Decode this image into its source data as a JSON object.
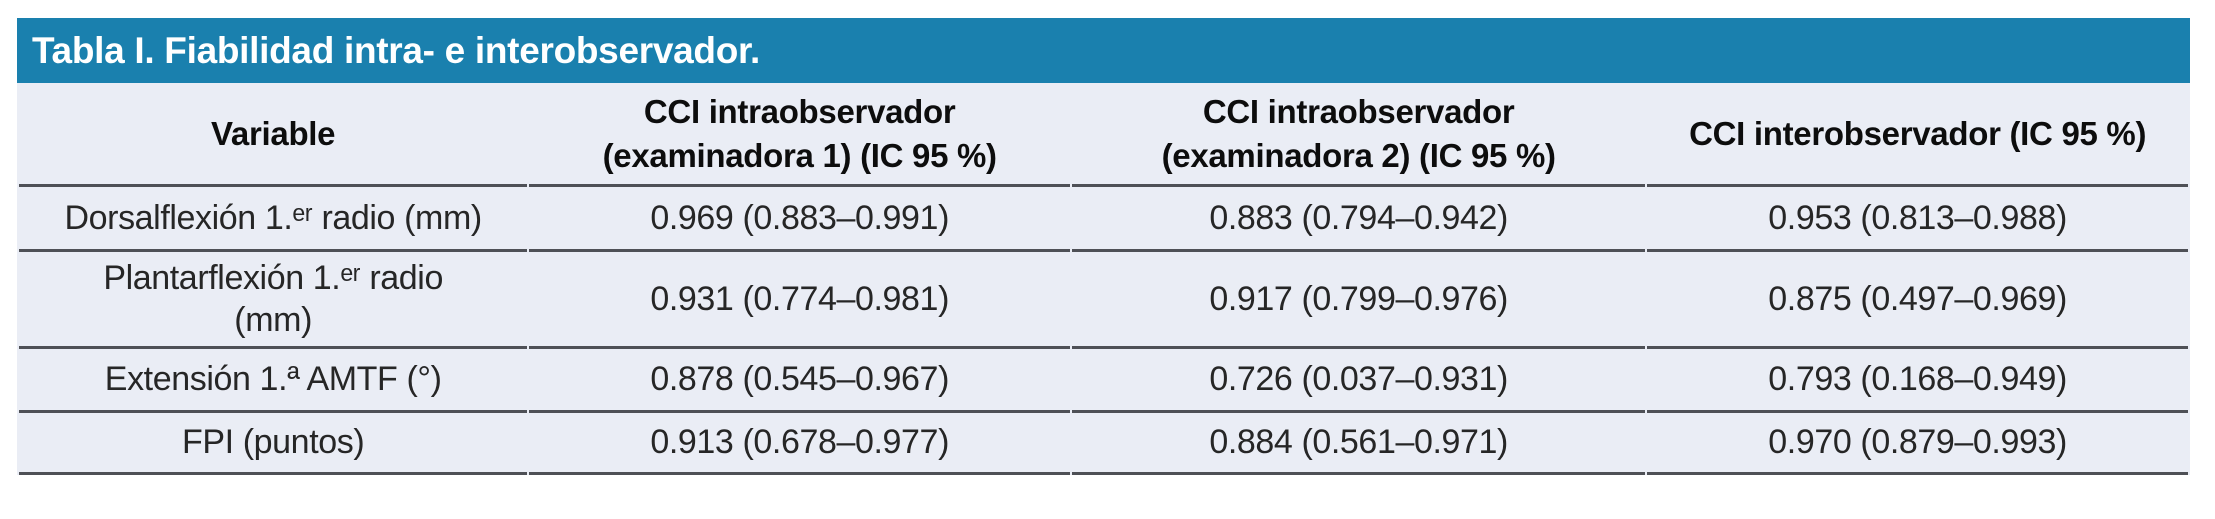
{
  "table": {
    "title": "Tabla I. Fiabilidad intra- e interobservador.",
    "columns": [
      "Variable",
      "CCI intraobservador\n(examinadora 1) (IC 95 %)",
      "CCI intraobservador\n(examinadora 2) (IC 95 %)",
      "CCI interobservador (IC 95 %)"
    ],
    "rows": [
      [
        "Dorsalflexión 1.ᵉʳ radio (mm)",
        "0.969 (0.883–0.991)",
        "0.883 (0.794–0.942)",
        "0.953 (0.813–0.988)"
      ],
      [
        "Plantarflexión 1.ᵉʳ radio\n(mm)",
        "0.931 (0.774–0.981)",
        "0.917 (0.799–0.976)",
        "0.875 (0.497–0.969)"
      ],
      [
        "Extensión 1.ª AMTF (°)",
        "0.878 (0.545–0.967)",
        "0.726 (0.037–0.931)",
        "0.793 (0.168–0.949)"
      ],
      [
        "FPI (puntos)",
        "0.913 (0.678–0.977)",
        "0.884 (0.561–0.971)",
        "0.970 (0.879–0.993)"
      ]
    ]
  },
  "colors": {
    "title_bar": "#1a80ae",
    "title_text": "#ffffff",
    "table_background": "#eaedf5",
    "rule": "#4e5056",
    "header_text": "#0d0d0d",
    "body_text": "#262626",
    "page_background": "#ffffff"
  }
}
